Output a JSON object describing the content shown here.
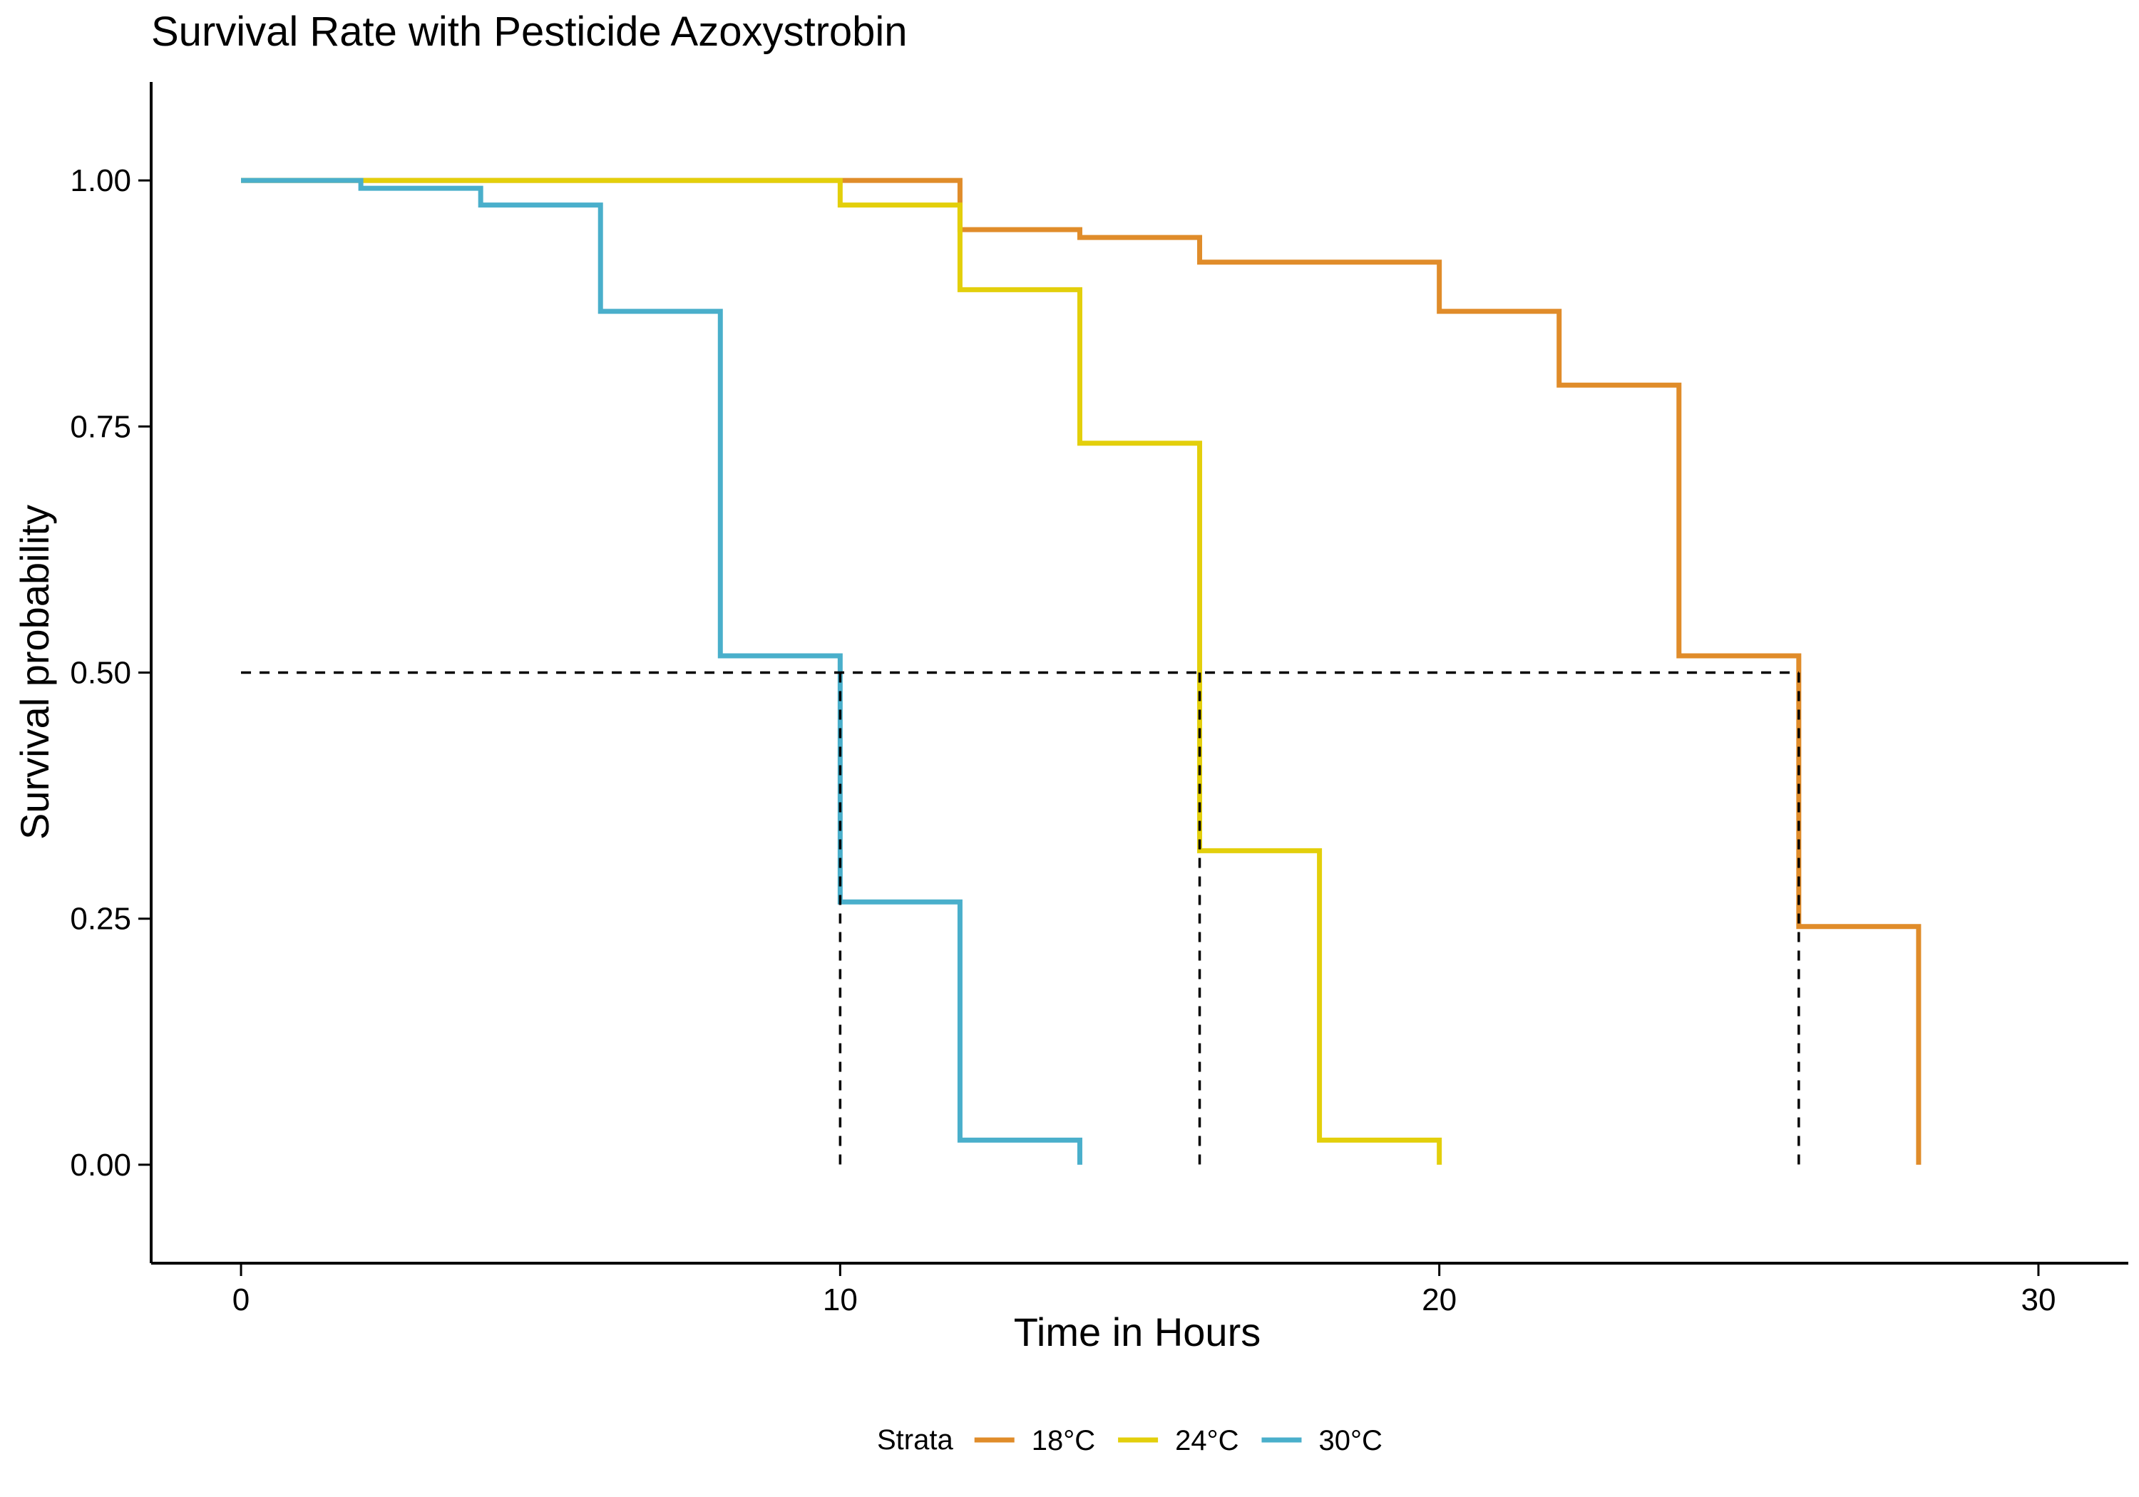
{
  "chart_data": {
    "type": "line",
    "subtype": "kaplan-meier step",
    "title": "Survival Rate with Pesticide Azoxystrobin",
    "xlabel": "Time in Hours",
    "ylabel": "Survival probability",
    "xlim": [
      -1.5,
      31.5
    ],
    "ylim": [
      -0.1,
      1.1
    ],
    "xticks": [
      0,
      10,
      20,
      30
    ],
    "xtick_labels": [
      "0",
      "10",
      "20",
      "30"
    ],
    "yticks": [
      0,
      0.25,
      0.5,
      0.75,
      1.0
    ],
    "ytick_labels": [
      "0.00",
      "0.25",
      "0.50",
      "0.75",
      "1.00"
    ],
    "grid": false,
    "legend": {
      "title": "Strata",
      "position": "bottom"
    },
    "median_line": {
      "y": 0.5,
      "x_end": 26,
      "verticals": [
        10,
        16,
        26
      ],
      "color": "#000000",
      "style": "dashed"
    },
    "series": [
      {
        "name": "18°C",
        "color": "#E08C2A",
        "x": [
          0,
          12,
          14,
          16,
          20,
          22,
          24,
          26,
          28
        ],
        "y": [
          1.0,
          0.95,
          0.942,
          0.917,
          0.867,
          0.792,
          0.517,
          0.242,
          0.0
        ]
      },
      {
        "name": "24°C",
        "color": "#E3CF0B",
        "x": [
          0,
          10,
          12,
          14,
          16,
          18,
          20
        ],
        "y": [
          1.0,
          0.975,
          0.889,
          0.733,
          0.319,
          0.025,
          0.0
        ]
      },
      {
        "name": "30°C",
        "color": "#4AAFCB",
        "x": [
          0,
          2,
          4,
          6,
          8,
          10,
          12,
          14
        ],
        "y": [
          1.0,
          0.992,
          0.975,
          0.867,
          0.517,
          0.267,
          0.025,
          0.0
        ]
      }
    ]
  }
}
